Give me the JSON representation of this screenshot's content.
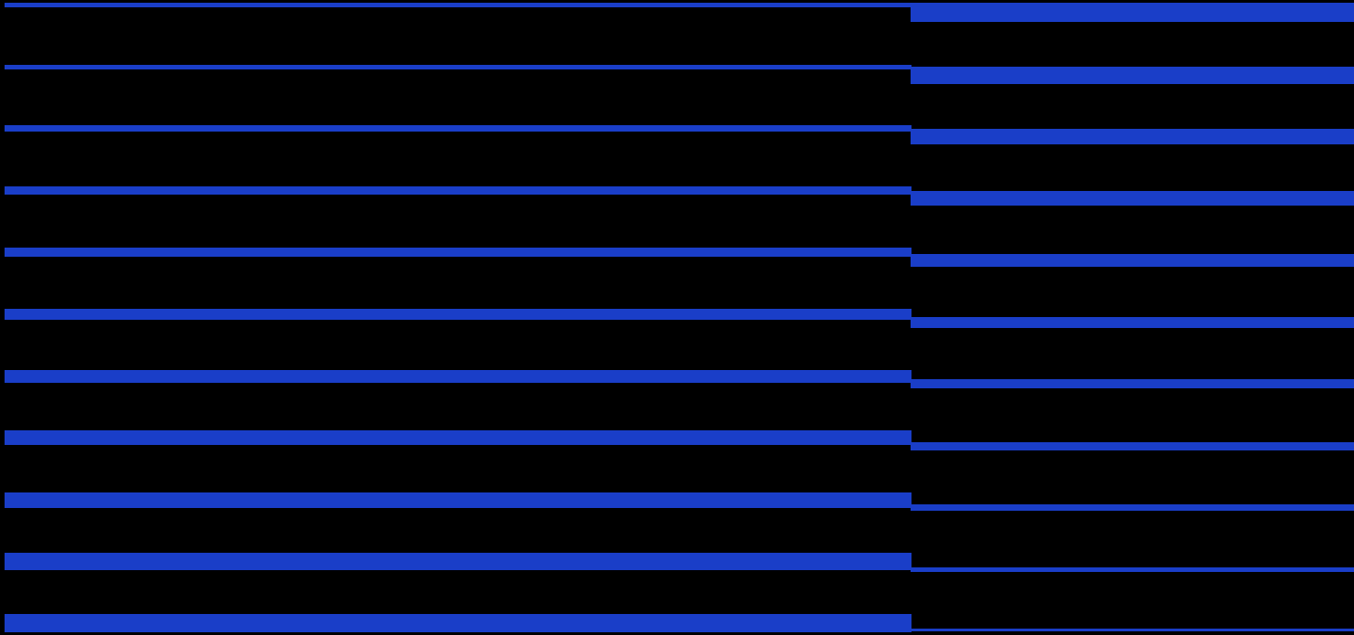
{
  "palette": {
    "background": "#000000",
    "stripe": "#1a3ec8"
  },
  "pattern": {
    "description_name": "stepped-horizontal-stripes",
    "left_panel": {
      "rows": 11,
      "thickness_trend": "increasing-downward"
    },
    "right_panel": {
      "rows": 11,
      "thickness_trend": "decreasing-downward"
    }
  }
}
